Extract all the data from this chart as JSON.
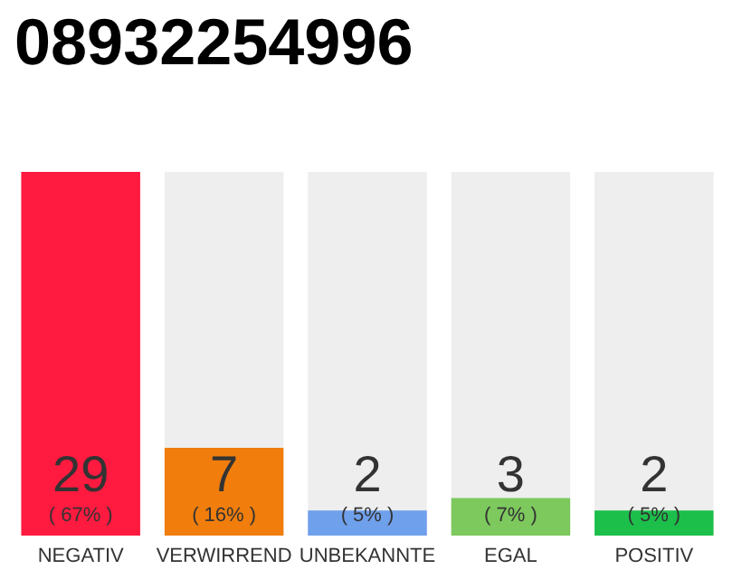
{
  "chart_data": {
    "type": "bar",
    "title": "08932254996",
    "categories": [
      "NEGATIV",
      "VERWIRREND",
      "UNBEKANNTE",
      "EGAL",
      "POSITIV"
    ],
    "values": [
      29,
      7,
      2,
      3,
      2
    ],
    "colors": [
      "#ff1a40",
      "#f07d0c",
      "#6fa0ec",
      "#7dc95e",
      "#1cbf4a"
    ],
    "value_labels": [
      "29\n( 67% )",
      "7\n( 16% )",
      "2\n( 5% )",
      "3\n( 7% )",
      "2\n( 5% )"
    ],
    "ylim": [
      0,
      29
    ],
    "tick_labels": "x"
  }
}
